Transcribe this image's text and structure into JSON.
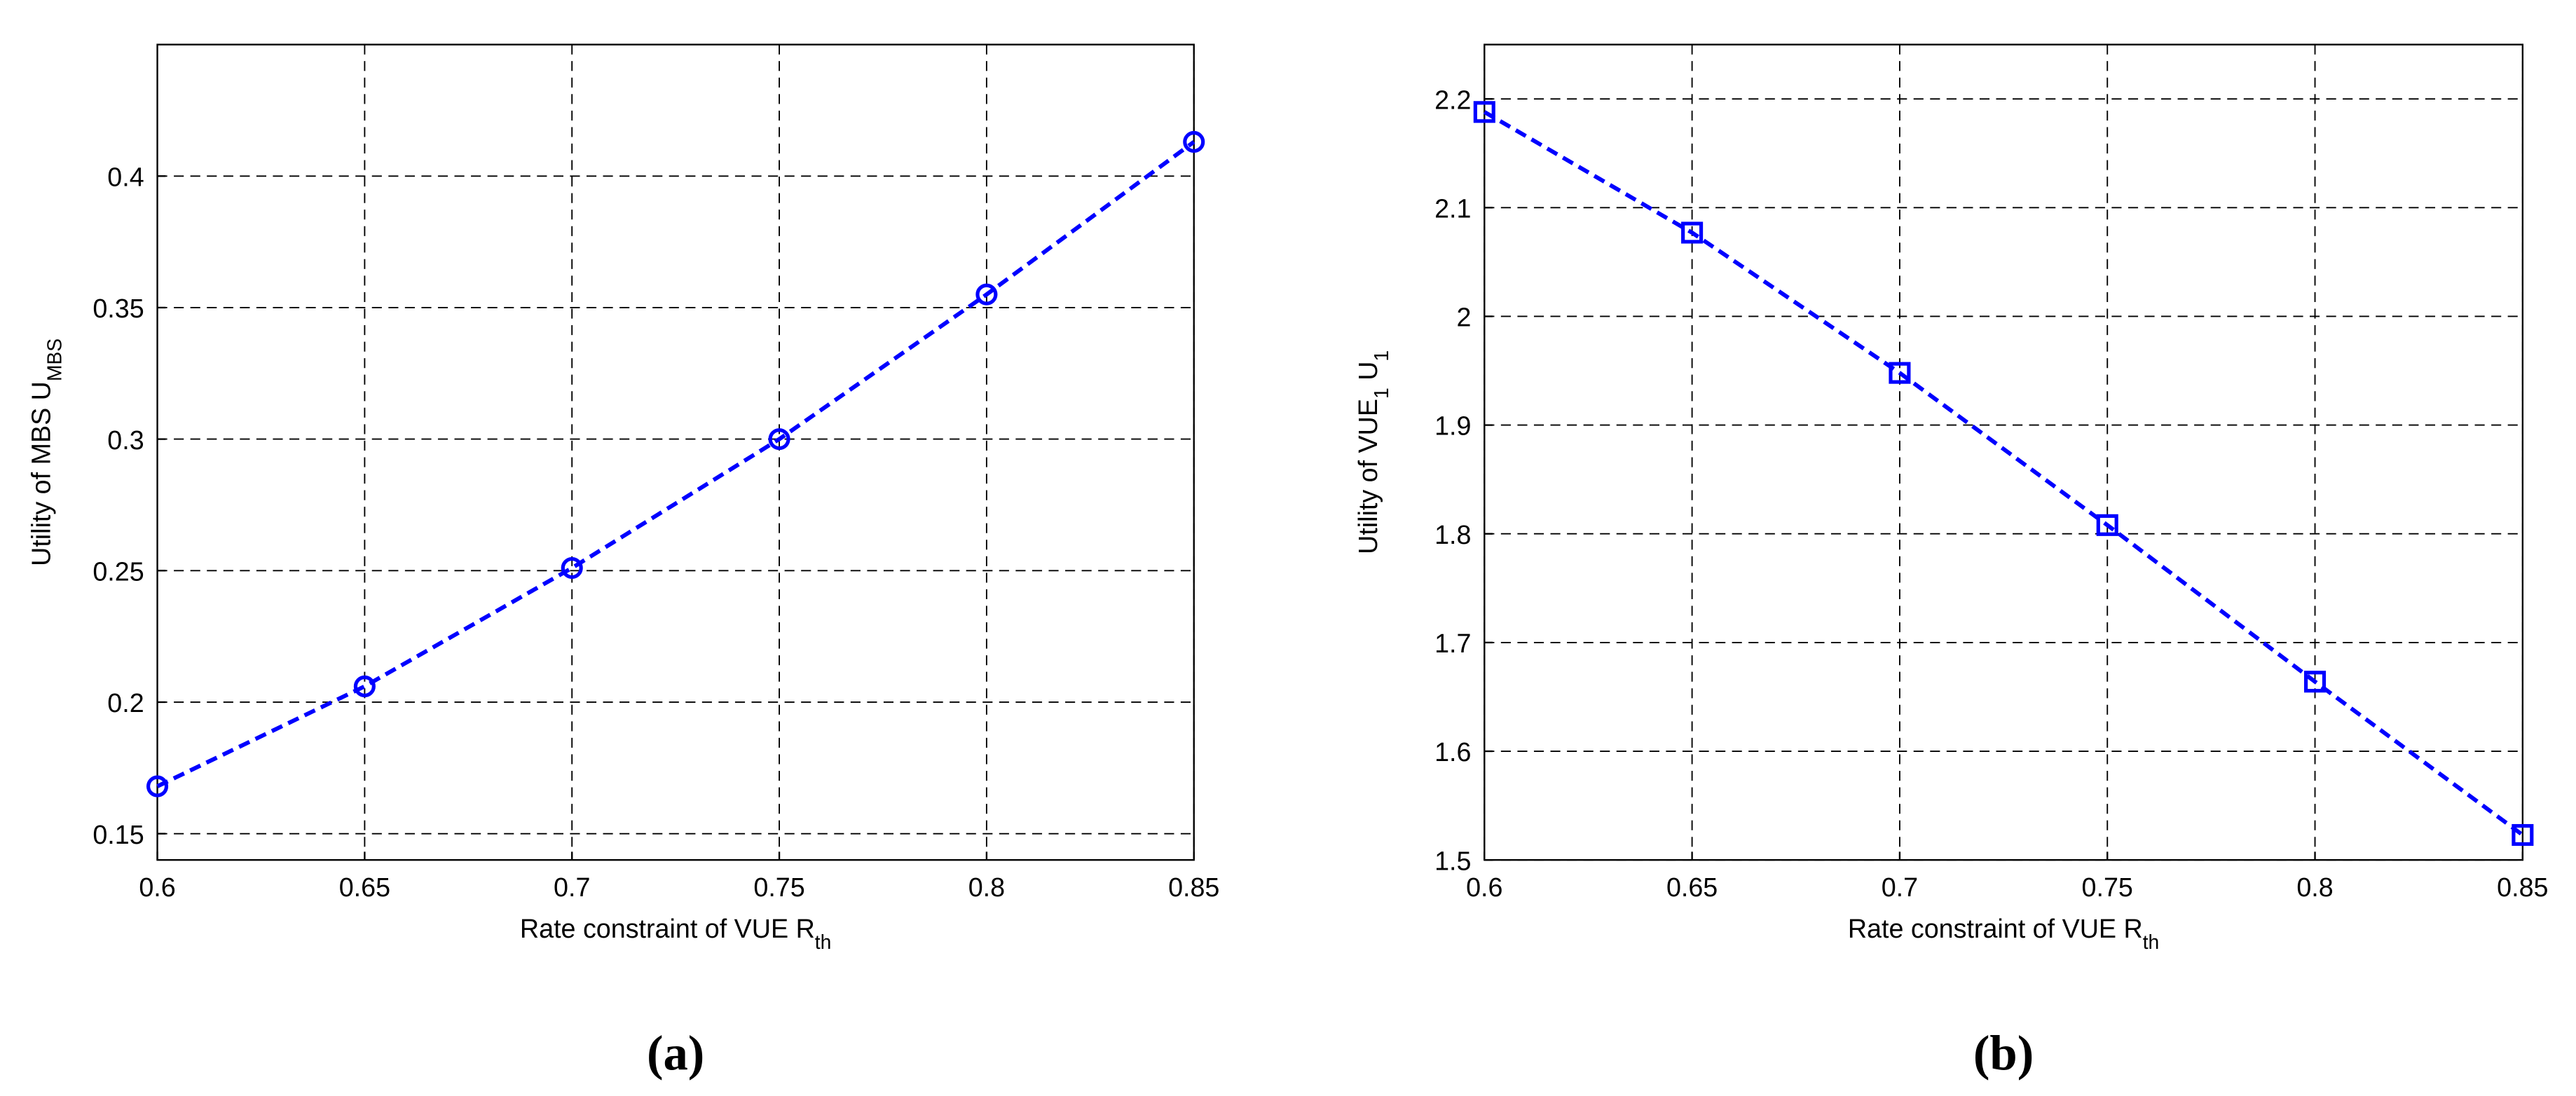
{
  "chart_data": [
    {
      "type": "line",
      "caption": "(a)",
      "xlabel": [
        {
          "text": "Rate constraint of VUE R"
        },
        {
          "text": "th",
          "sub": true
        }
      ],
      "ylabel": [
        {
          "text": "Utility of MBS U"
        },
        {
          "text": "MBS",
          "sub": true
        }
      ],
      "x": [
        0.6,
        0.65,
        0.7,
        0.75,
        0.8,
        0.85
      ],
      "series": [
        {
          "color": "#0000ff",
          "marker": "circle",
          "values": [
            0.168,
            0.206,
            0.251,
            0.3,
            0.355,
            0.413
          ]
        }
      ],
      "xlim": [
        0.6,
        0.85
      ],
      "xticks": [
        0.6,
        0.65,
        0.7,
        0.75,
        0.8,
        0.85
      ],
      "ylim": [
        0.14,
        0.45
      ],
      "yticks": [
        0.15,
        0.2,
        0.25,
        0.3,
        0.35,
        0.4
      ],
      "grid": true
    },
    {
      "type": "line",
      "caption": "(b)",
      "xlabel": [
        {
          "text": "Rate constraint of VUE R"
        },
        {
          "text": "th",
          "sub": true
        }
      ],
      "ylabel": [
        {
          "text": "Utility of VUE"
        },
        {
          "text": "1",
          "sub": true
        },
        {
          "text": " U"
        },
        {
          "text": "1",
          "sub": true
        }
      ],
      "x": [
        0.6,
        0.65,
        0.7,
        0.75,
        0.8,
        0.85
      ],
      "series": [
        {
          "color": "#0000ff",
          "marker": "square",
          "values": [
            2.188,
            2.077,
            1.948,
            1.808,
            1.664,
            1.523
          ]
        }
      ],
      "xlim": [
        0.6,
        0.85
      ],
      "xticks": [
        0.6,
        0.65,
        0.7,
        0.75,
        0.8,
        0.85
      ],
      "ylim": [
        1.5,
        2.25
      ],
      "yticks": [
        1.5,
        1.6,
        1.7,
        1.8,
        1.9,
        2,
        2.1,
        2.2
      ],
      "grid": true
    }
  ]
}
